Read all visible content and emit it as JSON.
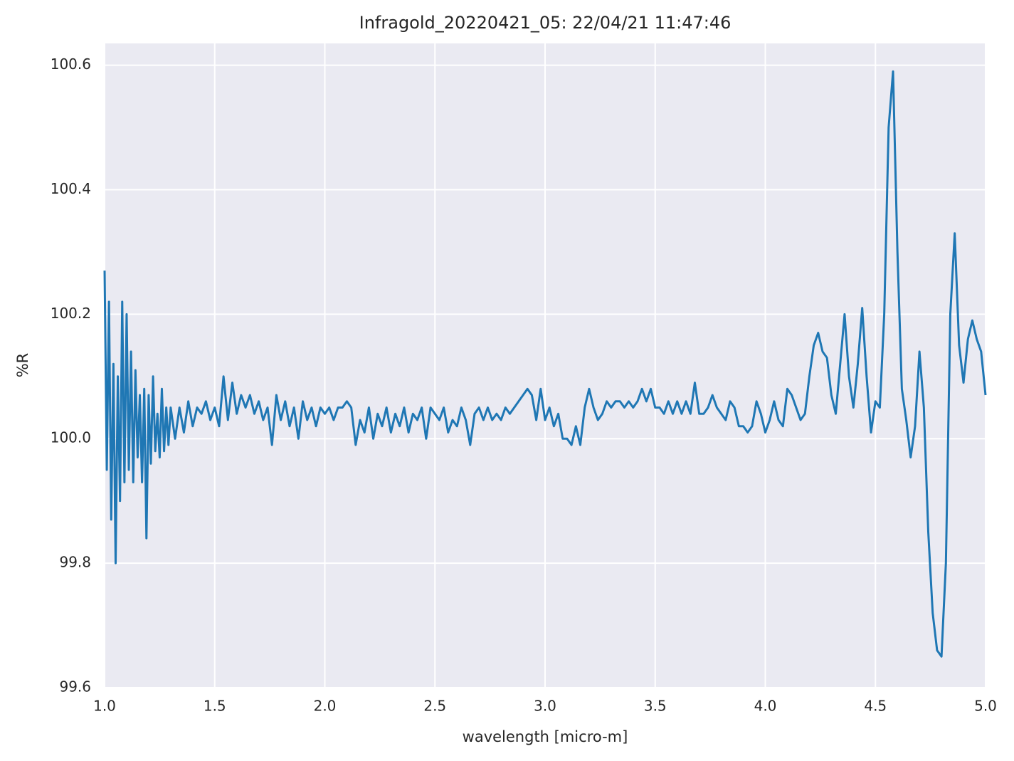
{
  "chart_data": {
    "type": "line",
    "title": "Infragold_20220421_05:  22/04/21 11:47:46",
    "xlabel": "wavelength [micro-m]",
    "ylabel": "%R",
    "color": "#1f77b4",
    "background": "#eaeaf2",
    "grid": true,
    "xlim": [
      1,
      5
    ],
    "ylim": [
      99.6,
      100.635
    ],
    "xticks": [
      {
        "value": 1,
        "label": "1.0"
      },
      1.5,
      {
        "value": 2,
        "label": "2.0"
      },
      2.5,
      {
        "value": 3,
        "label": "3.0"
      },
      3.5,
      {
        "value": 4,
        "label": "4.0"
      },
      4.5,
      {
        "value": 5,
        "label": "5.0"
      }
    ],
    "yticks": [
      99.6,
      99.8,
      {
        "value": 100,
        "label": "100.0"
      },
      100.2,
      100.4,
      100.6
    ],
    "x": [
      1.0,
      1.01,
      1.02,
      1.03,
      1.04,
      1.05,
      1.06,
      1.07,
      1.08,
      1.09,
      1.1,
      1.11,
      1.12,
      1.13,
      1.14,
      1.15,
      1.16,
      1.17,
      1.18,
      1.19,
      1.2,
      1.21,
      1.22,
      1.23,
      1.24,
      1.25,
      1.26,
      1.27,
      1.28,
      1.29,
      1.3,
      1.32,
      1.34,
      1.36,
      1.38,
      1.4,
      1.42,
      1.44,
      1.46,
      1.48,
      1.5,
      1.52,
      1.54,
      1.56,
      1.58,
      1.6,
      1.62,
      1.64,
      1.66,
      1.68,
      1.7,
      1.72,
      1.74,
      1.76,
      1.78,
      1.8,
      1.82,
      1.84,
      1.86,
      1.88,
      1.9,
      1.92,
      1.94,
      1.96,
      1.98,
      2.0,
      2.02,
      2.04,
      2.06,
      2.08,
      2.1,
      2.12,
      2.14,
      2.16,
      2.18,
      2.2,
      2.22,
      2.24,
      2.26,
      2.28,
      2.3,
      2.32,
      2.34,
      2.36,
      2.38,
      2.4,
      2.42,
      2.44,
      2.46,
      2.48,
      2.5,
      2.52,
      2.54,
      2.56,
      2.58,
      2.6,
      2.62,
      2.64,
      2.66,
      2.68,
      2.7,
      2.72,
      2.74,
      2.76,
      2.78,
      2.8,
      2.82,
      2.84,
      2.86,
      2.88,
      2.9,
      2.92,
      2.94,
      2.96,
      2.98,
      3.0,
      3.02,
      3.04,
      3.06,
      3.08,
      3.1,
      3.12,
      3.14,
      3.16,
      3.18,
      3.2,
      3.22,
      3.24,
      3.26,
      3.28,
      3.3,
      3.32,
      3.34,
      3.36,
      3.38,
      3.4,
      3.42,
      3.44,
      3.46,
      3.48,
      3.5,
      3.52,
      3.54,
      3.56,
      3.58,
      3.6,
      3.62,
      3.64,
      3.66,
      3.68,
      3.7,
      3.72,
      3.74,
      3.76,
      3.78,
      3.8,
      3.82,
      3.84,
      3.86,
      3.88,
      3.9,
      3.92,
      3.94,
      3.96,
      3.98,
      4.0,
      4.02,
      4.04,
      4.06,
      4.08,
      4.1,
      4.12,
      4.14,
      4.16,
      4.18,
      4.2,
      4.22,
      4.24,
      4.26,
      4.28,
      4.3,
      4.32,
      4.34,
      4.36,
      4.38,
      4.4,
      4.42,
      4.44,
      4.46,
      4.48,
      4.5,
      4.52,
      4.54,
      4.56,
      4.58,
      4.6,
      4.62,
      4.64,
      4.66,
      4.68,
      4.7,
      4.72,
      4.74,
      4.76,
      4.78,
      4.8,
      4.82,
      4.84,
      4.86,
      4.88,
      4.9,
      4.92,
      4.94,
      4.96,
      4.98,
      5.0
    ],
    "values": [
      100.27,
      99.95,
      100.22,
      99.87,
      100.12,
      99.8,
      100.1,
      99.9,
      100.22,
      99.93,
      100.2,
      99.95,
      100.14,
      99.93,
      100.11,
      99.97,
      100.07,
      99.93,
      100.08,
      99.84,
      100.07,
      99.96,
      100.1,
      99.98,
      100.04,
      99.97,
      100.08,
      99.98,
      100.05,
      99.99,
      100.05,
      100.0,
      100.05,
      100.01,
      100.06,
      100.02,
      100.05,
      100.04,
      100.06,
      100.03,
      100.05,
      100.02,
      100.1,
      100.03,
      100.09,
      100.04,
      100.07,
      100.05,
      100.07,
      100.04,
      100.06,
      100.03,
      100.05,
      99.99,
      100.07,
      100.03,
      100.06,
      100.02,
      100.05,
      100.0,
      100.06,
      100.03,
      100.05,
      100.02,
      100.05,
      100.04,
      100.05,
      100.03,
      100.05,
      100.05,
      100.06,
      100.05,
      99.99,
      100.03,
      100.01,
      100.05,
      100.0,
      100.04,
      100.02,
      100.05,
      100.01,
      100.04,
      100.02,
      100.05,
      100.01,
      100.04,
      100.03,
      100.05,
      100.0,
      100.05,
      100.04,
      100.03,
      100.05,
      100.01,
      100.03,
      100.02,
      100.05,
      100.03,
      99.99,
      100.04,
      100.05,
      100.03,
      100.05,
      100.03,
      100.04,
      100.03,
      100.05,
      100.04,
      100.05,
      100.06,
      100.07,
      100.08,
      100.07,
      100.03,
      100.08,
      100.03,
      100.05,
      100.02,
      100.04,
      100.0,
      100.0,
      99.99,
      100.02,
      99.99,
      100.05,
      100.08,
      100.05,
      100.03,
      100.04,
      100.06,
      100.05,
      100.06,
      100.06,
      100.05,
      100.06,
      100.05,
      100.06,
      100.08,
      100.06,
      100.08,
      100.05,
      100.05,
      100.04,
      100.06,
      100.04,
      100.06,
      100.04,
      100.06,
      100.04,
      100.09,
      100.04,
      100.04,
      100.05,
      100.07,
      100.05,
      100.04,
      100.03,
      100.06,
      100.05,
      100.02,
      100.02,
      100.01,
      100.02,
      100.06,
      100.04,
      100.01,
      100.03,
      100.06,
      100.03,
      100.02,
      100.08,
      100.07,
      100.05,
      100.03,
      100.04,
      100.1,
      100.15,
      100.17,
      100.14,
      100.13,
      100.07,
      100.04,
      100.12,
      100.2,
      100.1,
      100.05,
      100.12,
      100.21,
      100.1,
      100.01,
      100.06,
      100.05,
      100.2,
      100.5,
      100.59,
      100.3,
      100.08,
      100.03,
      99.97,
      100.02,
      100.14,
      100.05,
      99.85,
      99.72,
      99.66,
      99.65,
      99.8,
      100.2,
      100.33,
      100.15,
      100.09,
      100.16,
      100.19,
      100.16,
      100.14,
      100.07
    ]
  }
}
